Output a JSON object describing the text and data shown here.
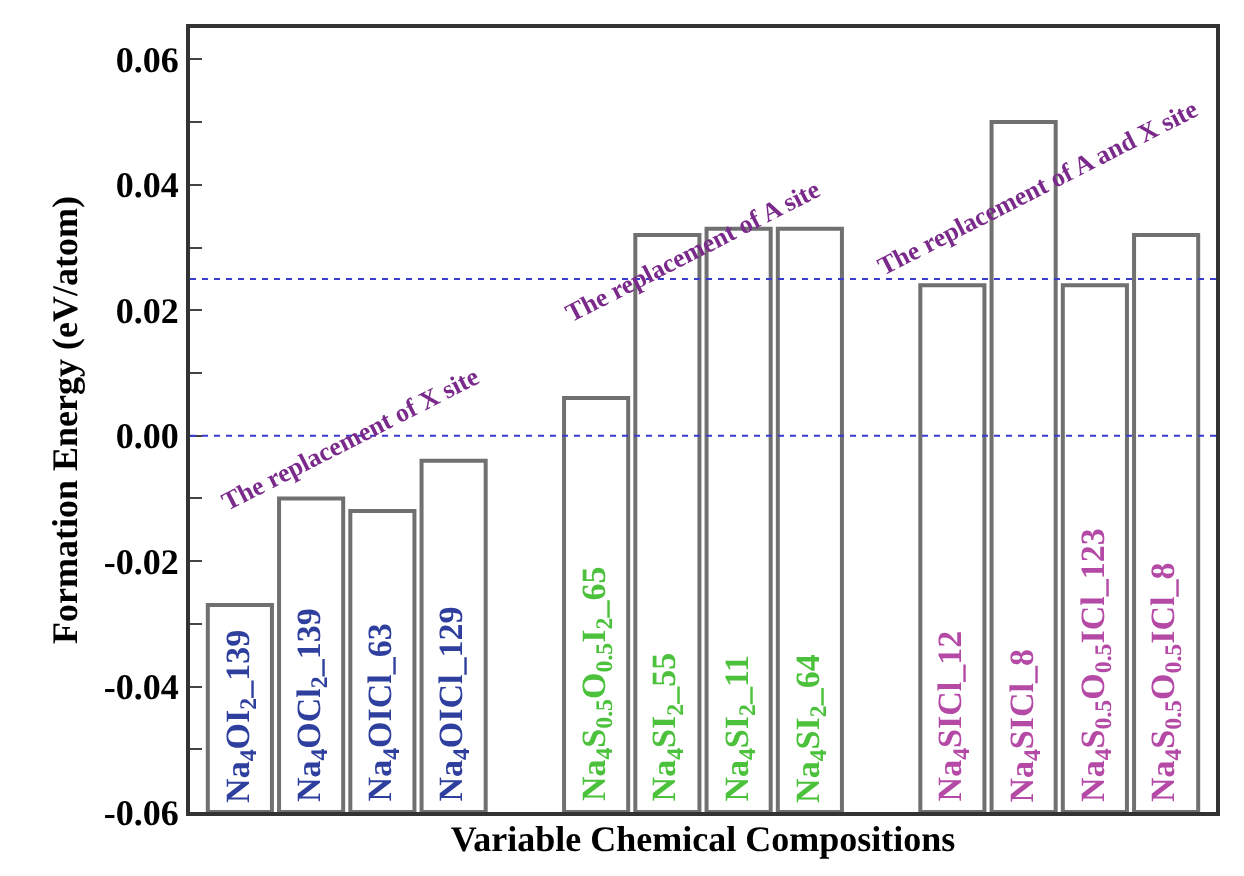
{
  "chart_data": {
    "type": "bar",
    "xlabel": "Variable Chemical Compositions",
    "ylabel": "Formation Energy (eV/atom)",
    "categories": [
      "Na$_{4}$OI$_{2}$_139",
      "Na$_{4}$OCl$_{2}$_139",
      "Na$_{4}$OICl_63",
      "Na$_{4}$OICl_129",
      null,
      "Na$_{4}$S$_{0.5}$O$_{0.5}$I$_{2}$_65",
      "Na$_{4}$SI$_{2}$_55",
      "Na$_{4}$SI$_{2}$_11",
      "Na$_{4}$SI$_{2}$_64",
      null,
      "Na$_{4}$SICl_12",
      "Na$_{4}$SICl_8",
      "Na$_{4}$S$_{0.5}$O$_{0.5}$ICl_123",
      "Na$_{4}$S$_{0.5}$O$_{0.5}$ICl_8"
    ],
    "series": [
      {
        "color": "#707070",
        "base": [
          -0.06,
          -0.06,
          -0.06,
          -0.06,
          null,
          null,
          null,
          null,
          null,
          null,
          null,
          null,
          null,
          null
        ],
        "values": [
          0.033,
          0.05,
          0.048,
          0.056,
          null,
          null,
          null,
          null,
          null,
          null,
          null,
          null,
          null,
          null
        ]
      },
      {
        "color": "#707070",
        "base": [
          null,
          null,
          null,
          null,
          null,
          -0.06,
          -0.06,
          -0.06,
          -0.06,
          null,
          null,
          null,
          null,
          null
        ],
        "values": [
          null,
          null,
          null,
          null,
          null,
          0.066,
          0.092,
          0.093,
          0.093,
          null,
          null,
          null,
          null,
          null
        ]
      },
      {
        "color": "#707070",
        "base": [
          null,
          null,
          null,
          null,
          null,
          null,
          null,
          null,
          null,
          null,
          -0.06,
          -0.06,
          -0.06,
          -0.06
        ],
        "values": [
          null,
          null,
          null,
          null,
          null,
          null,
          null,
          null,
          null,
          null,
          0.084,
          0.11,
          0.084,
          0.092
        ]
      }
    ],
    "ylim": [
      -0.06,
      0.065
    ],
    "yticks": [
      {
        "value": -0.06,
        "label": "-0.06"
      },
      {
        "value": -0.05,
        "label": null
      },
      {
        "value": -0.04,
        "label": "-0.04"
      },
      {
        "value": -0.03,
        "label": null
      },
      {
        "value": -0.02,
        "label": "-0.02"
      },
      {
        "value": -0.01,
        "label": null
      },
      {
        "value": 0.0,
        "label": "0.00"
      },
      {
        "value": 0.01,
        "label": null
      },
      {
        "value": 0.02,
        "label": "0.02"
      },
      {
        "value": 0.03,
        "label": null
      },
      {
        "value": 0.04,
        "label": "0.04"
      },
      {
        "value": 0.05,
        "label": null
      },
      {
        "value": 0.06,
        "label": "0.06"
      }
    ],
    "ref_lines": [
      {
        "axis": "y",
        "value": 0.0,
        "color": "#3a3ad0",
        "line_style": "dotted"
      },
      {
        "axis": "y",
        "value": 0.025,
        "color": "#3a3ad0",
        "line_style": "dotted"
      }
    ],
    "annotations": [
      "The replacement of X site",
      "The replacement of A site",
      "The replacement of A and X site"
    ]
  }
}
